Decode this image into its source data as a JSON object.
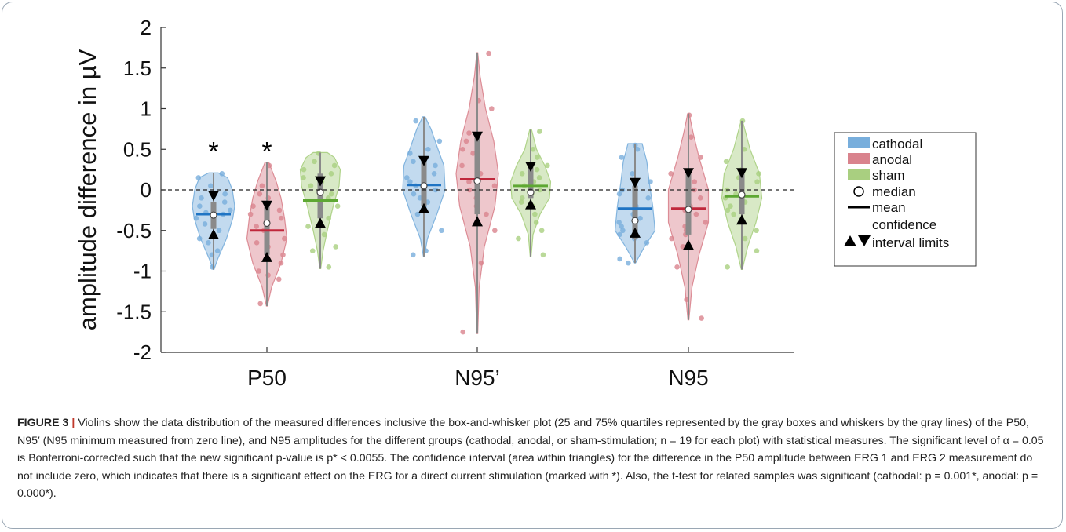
{
  "chart_data": {
    "type": "violin",
    "ylabel": "amplitude difference in µV",
    "ylim": [
      -2,
      2
    ],
    "yticks": [
      2,
      1.5,
      1,
      0.5,
      0,
      -0.5,
      -1,
      -1.5,
      -2
    ],
    "ytick_labels": [
      "2",
      "1.5",
      "1",
      "0.5",
      "0",
      "-0.5",
      "-1",
      "-1.5",
      "-2"
    ],
    "zero_line": "dashed",
    "categories": [
      "P50",
      "N95’",
      "N95"
    ],
    "groups": [
      {
        "name": "cathodal",
        "color": "#78aedc"
      },
      {
        "name": "anodal",
        "color": "#d9838d"
      },
      {
        "name": "sham",
        "color": "#a9cf80"
      }
    ],
    "mean_colors": [
      "#1f74c4",
      "#c0283c",
      "#5ea833"
    ],
    "violins": [
      {
        "category": "P50",
        "group": "cathodal",
        "min": -0.98,
        "max": 0.21,
        "q1": -0.48,
        "q3": -0.15,
        "median": -0.31,
        "mean": -0.3,
        "ci": [
          -0.54,
          -0.08
        ],
        "significant": true,
        "profile": [
          [
            -0.98,
            0.02
          ],
          [
            -0.85,
            0.18
          ],
          [
            -0.6,
            0.55
          ],
          [
            -0.35,
            0.82
          ],
          [
            -0.2,
            0.9
          ],
          [
            0,
            0.8
          ],
          [
            0.15,
            0.6
          ],
          [
            0.21,
            0.2
          ]
        ],
        "points": [
          0.2,
          0.15,
          0.05,
          -0.05,
          -0.1,
          -0.15,
          -0.2,
          -0.25,
          -0.28,
          -0.3,
          -0.35,
          -0.42,
          -0.5,
          -0.55,
          -0.6,
          -0.65,
          -0.75,
          -0.8,
          -0.95
        ]
      },
      {
        "category": "P50",
        "group": "anodal",
        "min": -1.43,
        "max": 0.34,
        "q1": -0.8,
        "q3": -0.15,
        "median": -0.41,
        "mean": -0.5,
        "ci": [
          -0.82,
          -0.2
        ],
        "significant": true,
        "profile": [
          [
            -1.43,
            0.02
          ],
          [
            -1.2,
            0.2
          ],
          [
            -0.9,
            0.6
          ],
          [
            -0.6,
            0.85
          ],
          [
            -0.35,
            0.75
          ],
          [
            -0.1,
            0.6
          ],
          [
            0.1,
            0.4
          ],
          [
            0.34,
            0.08
          ]
        ],
        "points": [
          0.3,
          0.05,
          -0.05,
          -0.1,
          -0.2,
          -0.3,
          -0.35,
          -0.45,
          -0.5,
          -0.6,
          -0.65,
          -0.7,
          -0.8,
          -0.9,
          -1.0,
          -1.05,
          -1.1,
          -1.4,
          -0.25
        ]
      },
      {
        "category": "P50",
        "group": "sham",
        "min": -0.97,
        "max": 0.46,
        "q1": -0.35,
        "q3": 0.2,
        "median": -0.03,
        "mean": -0.13,
        "ci": [
          -0.4,
          0.1
        ],
        "significant": false,
        "profile": [
          [
            -0.97,
            0.02
          ],
          [
            -0.75,
            0.12
          ],
          [
            -0.5,
            0.3
          ],
          [
            -0.2,
            0.55
          ],
          [
            0.05,
            0.8
          ],
          [
            0.25,
            0.85
          ],
          [
            0.4,
            0.6
          ],
          [
            0.46,
            0.3
          ]
        ],
        "points": [
          0.45,
          0.35,
          0.3,
          0.25,
          0.2,
          0.15,
          0.1,
          0.05,
          0.0,
          -0.05,
          -0.1,
          -0.2,
          -0.3,
          -0.35,
          -0.45,
          -0.55,
          -0.7,
          -0.75,
          -0.95
        ]
      },
      {
        "category": "N95’",
        "group": "cathodal",
        "min": -0.82,
        "max": 0.9,
        "q1": -0.2,
        "q3": 0.35,
        "median": 0.05,
        "mean": 0.06,
        "ci": [
          -0.22,
          0.35
        ],
        "significant": false,
        "profile": [
          [
            -0.82,
            0.02
          ],
          [
            -0.6,
            0.15
          ],
          [
            -0.3,
            0.55
          ],
          [
            0,
            0.9
          ],
          [
            0.3,
            0.85
          ],
          [
            0.5,
            0.6
          ],
          [
            0.75,
            0.3
          ],
          [
            0.9,
            0.05
          ]
        ],
        "points": [
          0.85,
          0.6,
          0.5,
          0.45,
          0.35,
          0.3,
          0.2,
          0.15,
          0.1,
          0.05,
          0.0,
          -0.05,
          -0.1,
          -0.15,
          -0.2,
          -0.3,
          -0.5,
          -0.75,
          -0.8
        ]
      },
      {
        "category": "N95’",
        "group": "anodal",
        "min": -1.77,
        "max": 1.69,
        "q1": -0.3,
        "q3": 0.65,
        "median": 0.11,
        "mean": 0.13,
        "ci": [
          -0.38,
          0.65
        ],
        "significant": false,
        "profile": [
          [
            -1.77,
            0.02
          ],
          [
            -1.2,
            0.08
          ],
          [
            -0.7,
            0.3
          ],
          [
            -0.2,
            0.75
          ],
          [
            0.2,
            0.9
          ],
          [
            0.6,
            0.7
          ],
          [
            1.0,
            0.35
          ],
          [
            1.4,
            0.12
          ],
          [
            1.69,
            0.02
          ]
        ],
        "points": [
          1.68,
          1.1,
          1.0,
          0.7,
          0.6,
          0.5,
          0.45,
          0.3,
          0.2,
          0.1,
          0.05,
          0.0,
          -0.1,
          -0.2,
          -0.3,
          -0.4,
          -0.5,
          -0.9,
          -1.75
        ]
      },
      {
        "category": "N95’",
        "group": "sham",
        "min": -0.82,
        "max": 0.74,
        "q1": -0.1,
        "q3": 0.28,
        "median": -0.03,
        "mean": 0.05,
        "ci": [
          -0.17,
          0.28
        ],
        "significant": false,
        "profile": [
          [
            -0.82,
            0.02
          ],
          [
            -0.55,
            0.1
          ],
          [
            -0.3,
            0.4
          ],
          [
            -0.1,
            0.8
          ],
          [
            0.1,
            0.85
          ],
          [
            0.3,
            0.6
          ],
          [
            0.5,
            0.25
          ],
          [
            0.74,
            0.04
          ]
        ],
        "points": [
          0.72,
          0.5,
          0.4,
          0.3,
          0.25,
          0.2,
          0.15,
          0.1,
          0.05,
          0.0,
          -0.05,
          -0.1,
          -0.15,
          -0.2,
          -0.3,
          -0.4,
          -0.5,
          -0.6,
          -0.8
        ]
      },
      {
        "category": "N95",
        "group": "cathodal",
        "min": -0.9,
        "max": 0.57,
        "q1": -0.6,
        "q3": 0.05,
        "median": -0.38,
        "mean": -0.23,
        "ci": [
          -0.52,
          0.08
        ],
        "significant": false,
        "profile": [
          [
            -0.9,
            0.02
          ],
          [
            -0.7,
            0.4
          ],
          [
            -0.5,
            0.85
          ],
          [
            -0.2,
            0.75
          ],
          [
            0.1,
            0.6
          ],
          [
            0.35,
            0.5
          ],
          [
            0.57,
            0.3
          ]
        ],
        "points": [
          0.55,
          0.5,
          0.4,
          0.2,
          0.1,
          0.0,
          -0.05,
          -0.1,
          -0.2,
          -0.3,
          -0.35,
          -0.4,
          -0.45,
          -0.5,
          -0.55,
          -0.6,
          -0.65,
          -0.85,
          -0.9
        ]
      },
      {
        "category": "N95",
        "group": "anodal",
        "min": -1.6,
        "max": 0.94,
        "q1": -0.55,
        "q3": 0.2,
        "median": -0.24,
        "mean": -0.23,
        "ci": [
          -0.67,
          0.2
        ],
        "significant": false,
        "profile": [
          [
            -1.6,
            0.02
          ],
          [
            -1.2,
            0.15
          ],
          [
            -0.8,
            0.45
          ],
          [
            -0.4,
            0.85
          ],
          [
            0,
            0.85
          ],
          [
            0.4,
            0.45
          ],
          [
            0.7,
            0.2
          ],
          [
            0.94,
            0.03
          ]
        ],
        "points": [
          0.92,
          0.65,
          0.4,
          0.2,
          0.1,
          0.0,
          -0.1,
          -0.2,
          -0.25,
          -0.3,
          -0.4,
          -0.45,
          -0.5,
          -0.55,
          -0.6,
          -0.7,
          -0.95,
          -1.35,
          -1.58
        ]
      },
      {
        "category": "N95",
        "group": "sham",
        "min": -0.98,
        "max": 0.85,
        "q1": -0.3,
        "q3": 0.2,
        "median": -0.06,
        "mean": -0.08,
        "ci": [
          -0.36,
          0.2
        ],
        "significant": false,
        "profile": [
          [
            -0.98,
            0.02
          ],
          [
            -0.7,
            0.25
          ],
          [
            -0.4,
            0.6
          ],
          [
            -0.1,
            0.85
          ],
          [
            0.2,
            0.75
          ],
          [
            0.5,
            0.35
          ],
          [
            0.85,
            0.03
          ]
        ],
        "points": [
          0.85,
          0.5,
          0.35,
          0.25,
          0.2,
          0.15,
          0.1,
          0.0,
          -0.05,
          -0.1,
          -0.15,
          -0.2,
          -0.25,
          -0.3,
          -0.4,
          -0.5,
          -0.6,
          -0.75,
          -0.95
        ]
      }
    ],
    "significance_marker": "*",
    "legend": {
      "placement": "right",
      "items": [
        {
          "kind": "swatch",
          "color": "#78aedc",
          "label": "cathodal"
        },
        {
          "kind": "swatch",
          "color": "#d9838d",
          "label": "anodal"
        },
        {
          "kind": "swatch",
          "color": "#a9cf80",
          "label": "sham"
        },
        {
          "kind": "circle",
          "label": "median"
        },
        {
          "kind": "line",
          "label": "mean"
        },
        {
          "kind": "triangles",
          "label": "confidence",
          "label2": "interval limits"
        }
      ]
    }
  },
  "caption": {
    "label": "FIGURE 3",
    "separator": "|",
    "text": " Violins show the data distribution of the measured differences inclusive the box-and-whisker plot (25 and 75% quartiles represented by the gray boxes and whiskers by the gray lines) of the P50, N95′ (N95 minimum measured from zero line), and N95 amplitudes for the different groups (cathodal, anodal, or sham-stimulation; n = 19 for each plot) with statistical measures. The significant level of α = 0.05 is Bonferroni-corrected such that the new significant p-value is p* < 0.0055. The confidence interval (area within triangles) for the difference in the P50 amplitude between ERG 1 and ERG 2 measurement do not include zero, which indicates that there is a significant effect on the ERG for a direct current stimulation (marked with *). Also, the t-test for related samples was significant (cathodal: p = 0.001*, anodal: p = 0.000*)."
  }
}
